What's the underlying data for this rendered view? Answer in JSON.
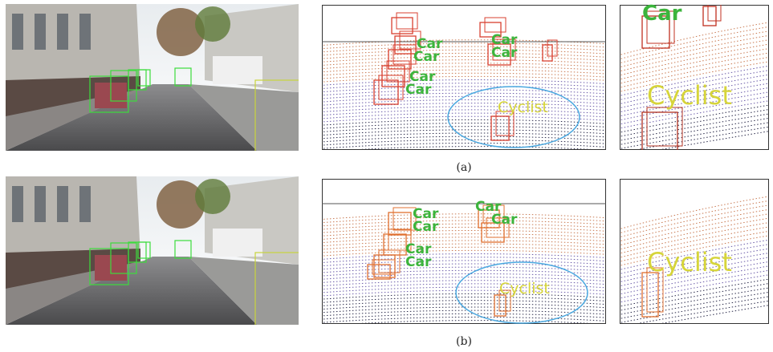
{
  "rows": [
    {
      "caption": "(a)",
      "pointcloud_labels": [
        "Car",
        "Car",
        "Car",
        "Car",
        "Car",
        "Car",
        "Cyclist"
      ],
      "zoom_labels": [
        "Car",
        "Cyclist"
      ]
    },
    {
      "caption": "(b)",
      "pointcloud_labels": [
        "Car",
        "Car",
        "Car",
        "Car",
        "Car",
        "Car",
        "Cyclist"
      ],
      "zoom_labels": [
        "Cyclist"
      ]
    }
  ]
}
